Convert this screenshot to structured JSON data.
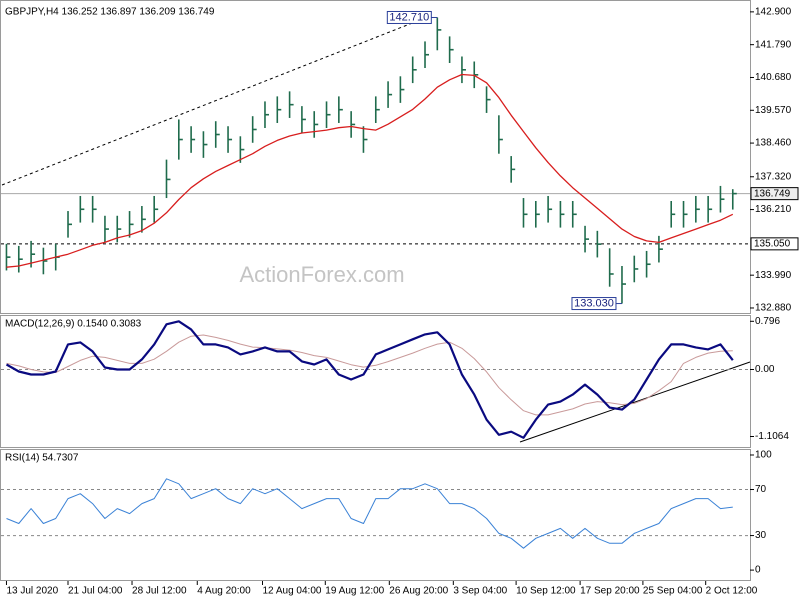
{
  "watermark": "ActionForex.com",
  "chart_data": [
    {
      "type": "ohlc",
      "title": "GBPJPY,H4 136.252 136.897 136.209 136.749",
      "color": "#1f6b4c",
      "x": [
        0,
        1,
        2,
        3,
        4,
        5,
        6,
        7,
        8,
        9,
        10,
        11,
        12,
        13,
        14,
        15,
        16,
        17,
        18,
        19,
        20,
        21,
        22,
        23,
        24,
        25,
        26,
        27,
        28,
        29,
        30,
        31,
        32,
        33,
        34,
        35,
        36,
        37,
        38,
        39,
        40,
        41,
        42,
        43,
        44,
        45,
        46,
        47,
        48,
        49,
        50,
        51,
        52,
        53,
        54,
        55,
        56,
        57,
        58,
        59
      ],
      "high": [
        135.05,
        134.98,
        135.15,
        134.92,
        135.05,
        136.16,
        136.67,
        136.67,
        136.0,
        136.0,
        136.16,
        136.33,
        136.67,
        137.9,
        139.26,
        139.03,
        138.86,
        139.2,
        139.03,
        138.69,
        139.37,
        139.87,
        140.04,
        140.21,
        139.71,
        139.54,
        139.87,
        140.04,
        139.54,
        139.03,
        140.04,
        140.55,
        140.72,
        141.39,
        141.9,
        142.71,
        142.07,
        141.39,
        141.22,
        140.38,
        139.4,
        138.02,
        136.6,
        136.5,
        136.67,
        136.5,
        136.5,
        135.66,
        135.49,
        134.9,
        134.3,
        134.65,
        134.81,
        135.32,
        136.5,
        136.5,
        136.67,
        136.67,
        137.01,
        136.9
      ],
      "low": [
        134.15,
        134.08,
        134.25,
        134.02,
        134.15,
        135.26,
        135.77,
        135.77,
        135.1,
        135.1,
        135.26,
        135.43,
        135.77,
        136.6,
        137.9,
        138.13,
        137.96,
        138.3,
        138.13,
        137.79,
        138.47,
        138.97,
        139.14,
        139.31,
        138.81,
        138.64,
        138.97,
        139.14,
        138.64,
        138.13,
        139.14,
        139.65,
        139.82,
        140.49,
        141.0,
        141.6,
        141.17,
        140.49,
        140.32,
        139.48,
        138.1,
        137.12,
        135.6,
        135.6,
        135.77,
        135.6,
        135.6,
        134.76,
        134.59,
        133.6,
        133.03,
        133.75,
        133.91,
        134.42,
        135.6,
        135.6,
        135.77,
        135.77,
        136.11,
        136.21
      ],
      "close": [
        134.6,
        134.53,
        134.7,
        134.47,
        134.6,
        135.71,
        136.22,
        136.22,
        135.55,
        135.55,
        135.71,
        135.88,
        136.22,
        137.23,
        138.58,
        138.58,
        138.41,
        138.75,
        138.58,
        138.24,
        138.92,
        139.42,
        139.59,
        139.76,
        139.26,
        139.09,
        139.42,
        139.59,
        139.09,
        138.58,
        139.59,
        140.1,
        140.27,
        140.94,
        141.45,
        142.29,
        141.62,
        140.94,
        140.77,
        139.93,
        138.58,
        137.57,
        136.05,
        136.05,
        136.22,
        136.05,
        136.05,
        135.21,
        135.04,
        134.03,
        133.69,
        134.2,
        134.36,
        134.87,
        136.05,
        136.05,
        136.22,
        136.22,
        136.56,
        136.75
      ],
      "overlay": {
        "color": "#d81e1e",
        "values": [
          134.26,
          134.3,
          134.4,
          134.5,
          134.6,
          134.7,
          134.85,
          135.0,
          135.1,
          135.25,
          135.35,
          135.5,
          135.75,
          136.1,
          136.55,
          136.95,
          137.25,
          137.5,
          137.7,
          137.9,
          138.1,
          138.35,
          138.55,
          138.7,
          138.8,
          138.85,
          138.9,
          138.98,
          139.02,
          138.95,
          138.9,
          139.1,
          139.35,
          139.6,
          139.95,
          140.35,
          140.6,
          140.78,
          140.75,
          140.5,
          140.0,
          139.4,
          138.85,
          138.3,
          137.8,
          137.35,
          136.95,
          136.6,
          136.25,
          135.9,
          135.55,
          135.3,
          135.15,
          135.1,
          135.25,
          135.4,
          135.55,
          135.7,
          135.85,
          136.05
        ]
      },
      "xlim": [
        -0.2,
        60.4
      ],
      "ylim": [
        132.71,
        143.2
      ],
      "grid": false,
      "yticks": [
        {
          "value": 142.9,
          "label": "142.900"
        },
        {
          "value": 141.79,
          "label": "141.790"
        },
        {
          "value": 140.68,
          "label": "140.680"
        },
        {
          "value": 139.57,
          "label": "139.570"
        },
        {
          "value": 138.46,
          "label": "138.460"
        },
        {
          "value": 137.32,
          "label": "137.320"
        },
        {
          "value": 136.21,
          "label": "136.210"
        },
        {
          "value": 133.99,
          "label": "133.990"
        },
        {
          "value": 132.88,
          "label": "132.880"
        }
      ],
      "levels": [
        {
          "value": 136.749,
          "label": "136.749",
          "style": "solid"
        },
        {
          "value": 135.05,
          "label": "135.050",
          "style": "dashed"
        }
      ],
      "annotations": [
        {
          "x": 35,
          "value": 142.71,
          "label": "142.710"
        },
        {
          "x": 50,
          "value": 133.03,
          "label": "133.030"
        }
      ]
    },
    {
      "type": "line",
      "title": "MACD(12,26,9) 0.1540 0.3083",
      "x": [
        0,
        1,
        2,
        3,
        4,
        5,
        6,
        7,
        8,
        9,
        10,
        11,
        12,
        13,
        14,
        15,
        16,
        17,
        18,
        19,
        20,
        21,
        22,
        23,
        24,
        25,
        26,
        27,
        28,
        29,
        30,
        31,
        32,
        33,
        34,
        35,
        36,
        37,
        38,
        39,
        40,
        41,
        42,
        43,
        44,
        45,
        46,
        47,
        48,
        49,
        50,
        51,
        52,
        53,
        54,
        55,
        56,
        57,
        58,
        59
      ],
      "series": [
        {
          "color": "#c99a9a",
          "width": 1,
          "values": [
            0.1,
            0.06,
            0.0,
            -0.04,
            -0.05,
            0.05,
            0.15,
            0.22,
            0.2,
            0.15,
            0.1,
            0.1,
            0.17,
            0.3,
            0.45,
            0.55,
            0.57,
            0.53,
            0.48,
            0.42,
            0.37,
            0.36,
            0.34,
            0.32,
            0.28,
            0.23,
            0.2,
            0.14,
            0.08,
            0.04,
            0.07,
            0.13,
            0.2,
            0.27,
            0.35,
            0.42,
            0.45,
            0.35,
            0.18,
            -0.04,
            -0.3,
            -0.5,
            -0.68,
            -0.75,
            -0.75,
            -0.7,
            -0.65,
            -0.57,
            -0.53,
            -0.55,
            -0.58,
            -0.56,
            -0.48,
            -0.35,
            -0.2,
            0.1,
            0.2,
            0.27,
            0.3,
            0.308
          ]
        },
        {
          "color": "#0a0a80",
          "width": 2.2,
          "values": [
            0.083,
            -0.033,
            -0.083,
            -0.083,
            -0.033,
            0.415,
            0.448,
            0.299,
            0.033,
            0,
            0,
            0.166,
            0.415,
            0.746,
            0.796,
            0.663,
            0.415,
            0.415,
            0.365,
            0.249,
            0.299,
            0.365,
            0.299,
            0.299,
            0.133,
            0.083,
            0.166,
            -0.083,
            -0.166,
            -0.083,
            0.249,
            0.332,
            0.415,
            0.498,
            0.58,
            0.614,
            0.415,
            -0.083,
            -0.415,
            -0.829,
            -1.078,
            -1.028,
            -1.128,
            -0.829,
            -0.58,
            -0.531,
            -0.415,
            -0.249,
            -0.415,
            -0.63,
            -0.663,
            -0.498,
            -0.166,
            0.166,
            0.415,
            0.415,
            0.365,
            0.332,
            0.415,
            0.154
          ]
        }
      ],
      "xlim": [
        -0.2,
        60.4
      ],
      "ylim": [
        -1.28,
        0.9
      ],
      "grid": true,
      "yticks": [
        0.796,
        {
          "value": 0,
          "label": "0.00"
        },
        -1.1064
      ]
    },
    {
      "type": "line",
      "title": "RSI(14) 54.7307",
      "x": [
        0,
        1,
        2,
        3,
        4,
        5,
        6,
        7,
        8,
        9,
        10,
        11,
        12,
        13,
        14,
        15,
        16,
        17,
        18,
        19,
        20,
        21,
        22,
        23,
        24,
        25,
        26,
        27,
        28,
        29,
        30,
        31,
        32,
        33,
        34,
        35,
        36,
        37,
        38,
        39,
        40,
        41,
        42,
        43,
        44,
        45,
        46,
        47,
        48,
        49,
        50,
        51,
        52,
        53,
        54,
        55,
        56,
        57,
        58,
        59
      ],
      "series": [
        {
          "color": "#3b82d6",
          "width": 1,
          "values": [
            44.8,
            40.5,
            53.4,
            40.5,
            44.8,
            62.1,
            66.4,
            57.8,
            44.8,
            53.4,
            49.1,
            57.8,
            62.1,
            79.3,
            75.0,
            62.1,
            66.4,
            70.7,
            62.1,
            57.8,
            70.7,
            66.4,
            70.7,
            62.1,
            53.4,
            57.8,
            62.1,
            62.1,
            44.8,
            40.5,
            62.1,
            62.1,
            70.7,
            70.7,
            75.0,
            70.7,
            57.8,
            57.8,
            53.4,
            44.8,
            31.9,
            27.6,
            19.0,
            27.6,
            31.9,
            36.2,
            27.6,
            36.2,
            27.6,
            23.3,
            23.3,
            31.9,
            36.2,
            40.5,
            53.4,
            57.8,
            62.1,
            62.1,
            53.4,
            54.73
          ]
        }
      ],
      "xlim": [
        -0.2,
        60.4
      ],
      "ylim": [
        -8.6,
        105.2
      ],
      "grid": true,
      "yticks": [
        100,
        70,
        30,
        0
      ],
      "xticks": [
        {
          "value": 0,
          "label": "13 Jul 2020"
        },
        {
          "value": 5,
          "label": "21 Jul 04:00"
        },
        {
          "value": 10.2,
          "label": "28 Jul 12:00"
        },
        {
          "value": 15.5,
          "label": "4 Aug 20:00"
        },
        {
          "value": 20.8,
          "label": "12 Aug 04:00"
        },
        {
          "value": 25.9,
          "label": "19 Aug 12:00"
        },
        {
          "value": 31.1,
          "label": "26 Aug 20:00"
        },
        {
          "value": 36.3,
          "label": "3 Sep 04:00"
        },
        {
          "value": 41.4,
          "label": "10 Sep 12:00"
        },
        {
          "value": 46.6,
          "label": "17 Sep 20:00"
        },
        {
          "value": 51.7,
          "label": "25 Sep 04:00"
        },
        {
          "value": 56.8,
          "label": "2 Oct 12:00"
        }
      ]
    }
  ]
}
